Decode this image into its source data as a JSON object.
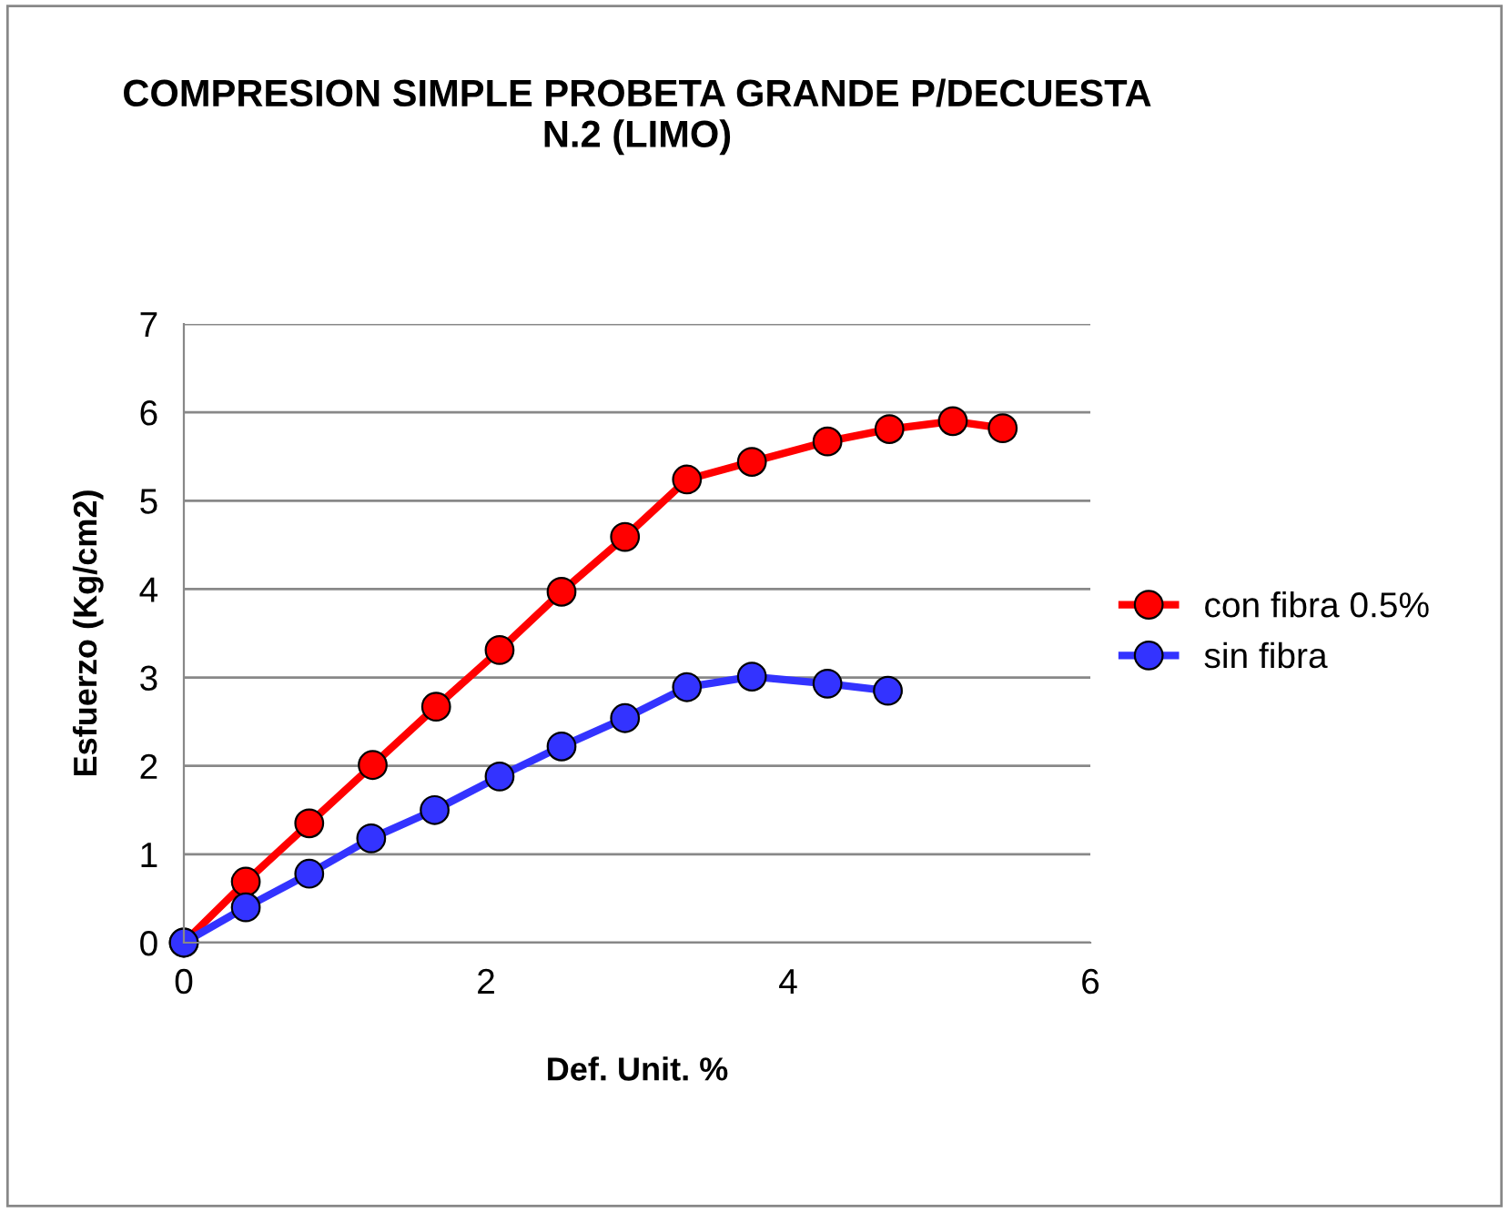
{
  "chart_data": {
    "type": "line",
    "title": "COMPRESION SIMPLE PROBETA GRANDE P/DECUESTA\nN.2 (LIMO)",
    "xlabel": "Def. Unit. %",
    "ylabel": "Esfuerzo (Kg/cm2)",
    "xlim": [
      0,
      6
    ],
    "xticks": [
      0,
      2,
      4,
      6
    ],
    "ylim": [
      0,
      7
    ],
    "yticks": [
      0,
      1,
      2,
      3,
      4,
      5,
      6,
      7
    ],
    "grid": "y",
    "legend": "right",
    "marker": "circle",
    "line_style": "solid",
    "series": [
      {
        "name": "con fibra 0.5%",
        "color": "#ff0000",
        "x": [
          0,
          0.41,
          0.83,
          1.25,
          1.67,
          2.09,
          2.5,
          2.92,
          3.33,
          3.76,
          4.26,
          4.67,
          5.09,
          5.42
        ],
        "values": [
          0,
          0.69,
          1.35,
          2.01,
          2.67,
          3.31,
          3.97,
          4.59,
          5.24,
          5.44,
          5.67,
          5.81,
          5.9,
          5.82
        ]
      },
      {
        "name": "sin fibra",
        "color": "#3333ff",
        "x": [
          0,
          0.41,
          0.83,
          1.24,
          1.66,
          2.09,
          2.5,
          2.92,
          3.33,
          3.76,
          4.26,
          4.66
        ],
        "values": [
          0,
          0.4,
          0.78,
          1.18,
          1.5,
          1.88,
          2.22,
          2.54,
          2.89,
          3.01,
          2.93,
          2.85
        ]
      }
    ]
  }
}
